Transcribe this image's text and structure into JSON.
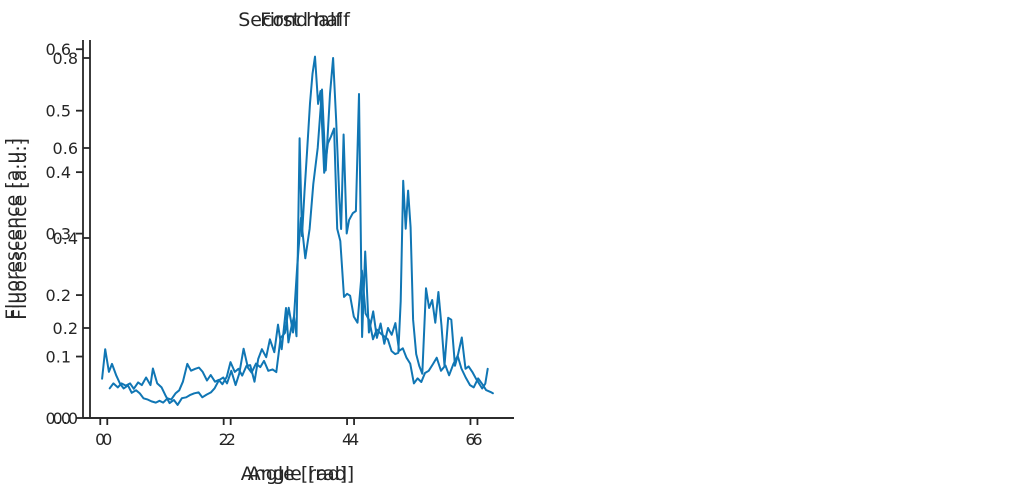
{
  "figure": {
    "background": "#ffffff",
    "text_color": "#262626",
    "spine_color": "#262626",
    "line_color": "#1076b4"
  },
  "chart_data": [
    {
      "type": "line",
      "title": "First half",
      "xlabel": "Angle [rad]",
      "ylabel": "Fluorescence [a.u.]",
      "legend": null,
      "grid": false,
      "xlim": [
        -0.28,
        6.56
      ],
      "ylim": [
        0,
        0.84
      ],
      "xticks": [
        0,
        2,
        4,
        6
      ],
      "xtick_labels": [
        "0",
        "2",
        "4",
        "6"
      ],
      "yticks": [
        0,
        0.2,
        0.4,
        0.6,
        0.8
      ],
      "ytick_labels": [
        "0.0",
        "0.2",
        "0.4",
        "0.6",
        "0.8"
      ],
      "layout": {
        "axes_left": 90,
        "axes_right": 512,
        "axes_top": 40,
        "axes_bottom": 418
      },
      "x": [
        0.04,
        0.1,
        0.17,
        0.23,
        0.3,
        0.37,
        0.43,
        0.5,
        0.56,
        0.63,
        0.7,
        0.74,
        0.81,
        0.88,
        0.94,
        1.01,
        1.08,
        1.14,
        1.21,
        1.28,
        1.34,
        1.41,
        1.48,
        1.54,
        1.61,
        1.68,
        1.74,
        1.81,
        1.88,
        1.94,
        2.01,
        2.08,
        2.14,
        2.21,
        2.28,
        2.34,
        2.41,
        2.48,
        2.54,
        2.61,
        2.68,
        2.74,
        2.81,
        2.88,
        2.94,
        3.01,
        3.08,
        3.14,
        3.21,
        3.28,
        3.34,
        3.41,
        3.48,
        3.54,
        3.61,
        3.66,
        3.71,
        3.76,
        3.79,
        3.83,
        3.88,
        3.92,
        3.98,
        4.03,
        4.08,
        4.13,
        4.18,
        4.24,
        4.31,
        4.37,
        4.43,
        4.49,
        4.55,
        4.61,
        4.67,
        4.73,
        4.79,
        4.85,
        4.91,
        4.97,
        5.03,
        5.09,
        5.15,
        5.21,
        5.28,
        5.34,
        5.41,
        5.48,
        5.54,
        5.61,
        5.68,
        5.74,
        5.81,
        5.88,
        5.94,
        6.01,
        6.08,
        6.14,
        6.21,
        6.25
      ],
      "y": [
        0.066,
        0.077,
        0.068,
        0.077,
        0.072,
        0.077,
        0.065,
        0.079,
        0.073,
        0.09,
        0.073,
        0.11,
        0.077,
        0.068,
        0.051,
        0.033,
        0.04,
        0.029,
        0.044,
        0.046,
        0.051,
        0.055,
        0.057,
        0.046,
        0.052,
        0.057,
        0.066,
        0.084,
        0.09,
        0.077,
        0.105,
        0.073,
        0.099,
        0.154,
        0.112,
        0.101,
        0.121,
        0.113,
        0.127,
        0.105,
        0.108,
        0.102,
        0.178,
        0.189,
        0.245,
        0.19,
        0.34,
        0.445,
        0.355,
        0.42,
        0.52,
        0.6,
        0.73,
        0.55,
        0.72,
        0.8,
        0.66,
        0.49,
        0.42,
        0.63,
        0.41,
        0.44,
        0.455,
        0.46,
        0.72,
        0.18,
        0.37,
        0.19,
        0.237,
        0.178,
        0.21,
        0.165,
        0.2,
        0.185,
        0.211,
        0.149,
        0.155,
        0.134,
        0.121,
        0.077,
        0.088,
        0.08,
        0.1,
        0.105,
        0.12,
        0.134,
        0.105,
        0.117,
        0.095,
        0.12,
        0.138,
        0.11,
        0.09,
        0.073,
        0.068,
        0.088,
        0.075,
        0.062,
        0.058,
        0.055
      ]
    },
    {
      "type": "line",
      "title": "Second half",
      "xlabel": "Angle [rad]",
      "ylabel": "Fluorescence [a.u.]",
      "legend": null,
      "grid": false,
      "xlim": [
        -0.28,
        6.56
      ],
      "ylim": [
        0,
        0.615
      ],
      "xticks": [
        0,
        2,
        4,
        6
      ],
      "xtick_labels": [
        "0",
        "2",
        "4",
        "6"
      ],
      "yticks": [
        0,
        0.1,
        0.2,
        0.3,
        0.4,
        0.5,
        0.6
      ],
      "ytick_labels": [
        "0.0",
        "0.1",
        "0.2",
        "0.3",
        "0.4",
        "0.5",
        "0.6"
      ],
      "layout": {
        "axes_left": 83,
        "axes_right": 505,
        "axes_top": 40,
        "axes_bottom": 418
      },
      "x": [
        0.03,
        0.08,
        0.14,
        0.19,
        0.26,
        0.32,
        0.38,
        0.45,
        0.51,
        0.58,
        0.64,
        0.7,
        0.77,
        0.83,
        0.9,
        0.96,
        1.02,
        1.09,
        1.15,
        1.22,
        1.28,
        1.34,
        1.41,
        1.47,
        1.54,
        1.6,
        1.66,
        1.73,
        1.79,
        1.86,
        1.92,
        1.98,
        2.05,
        2.11,
        2.18,
        2.24,
        2.3,
        2.37,
        2.43,
        2.5,
        2.56,
        2.62,
        2.69,
        2.75,
        2.82,
        2.88,
        2.94,
        3.01,
        3.05,
        3.1,
        3.14,
        3.18,
        3.23,
        3.27,
        3.31,
        3.35,
        3.4,
        3.44,
        3.48,
        3.53,
        3.57,
        3.63,
        3.69,
        3.74,
        3.79,
        3.84,
        3.89,
        3.95,
        4.0,
        4.05,
        4.11,
        4.17,
        4.24,
        4.3,
        4.36,
        4.42,
        4.48,
        4.54,
        4.6,
        4.66,
        4.72,
        4.78,
        4.83,
        4.87,
        4.91,
        4.95,
        4.99,
        5.03,
        5.07,
        5.12,
        5.17,
        5.22,
        5.28,
        5.33,
        5.38,
        5.43,
        5.48,
        5.53,
        5.58,
        5.64,
        5.69,
        5.75,
        5.8,
        5.86,
        5.92,
        5.97,
        6.03,
        6.09,
        6.14,
        6.19,
        6.24,
        6.28
      ],
      "y": [
        0.064,
        0.112,
        0.075,
        0.088,
        0.069,
        0.056,
        0.048,
        0.053,
        0.041,
        0.045,
        0.04,
        0.032,
        0.03,
        0.027,
        0.025,
        0.028,
        0.025,
        0.032,
        0.03,
        0.04,
        0.045,
        0.059,
        0.088,
        0.077,
        0.08,
        0.082,
        0.075,
        0.061,
        0.07,
        0.059,
        0.062,
        0.055,
        0.067,
        0.091,
        0.075,
        0.08,
        0.069,
        0.085,
        0.086,
        0.059,
        0.096,
        0.112,
        0.099,
        0.128,
        0.107,
        0.152,
        0.112,
        0.179,
        0.123,
        0.149,
        0.165,
        0.133,
        0.455,
        0.296,
        0.368,
        0.432,
        0.512,
        0.56,
        0.588,
        0.511,
        0.532,
        0.399,
        0.447,
        0.458,
        0.471,
        0.308,
        0.288,
        0.197,
        0.202,
        0.199,
        0.165,
        0.155,
        0.24,
        0.17,
        0.159,
        0.128,
        0.144,
        0.138,
        0.133,
        0.128,
        0.109,
        0.104,
        0.106,
        0.19,
        0.386,
        0.308,
        0.37,
        0.31,
        0.16,
        0.104,
        0.085,
        0.072,
        0.211,
        0.179,
        0.192,
        0.155,
        0.205,
        0.15,
        0.085,
        0.163,
        0.16,
        0.085,
        0.104,
        0.131,
        0.08,
        0.084,
        0.075,
        0.064,
        0.056,
        0.048,
        0.056,
        0.08
      ]
    }
  ],
  "style": {
    "title_font_size": 19,
    "axis_label_font_size": 19,
    "tick_label_font_size": 16,
    "line_width": 2,
    "spine_width": 1.8,
    "tick_length": 7
  }
}
